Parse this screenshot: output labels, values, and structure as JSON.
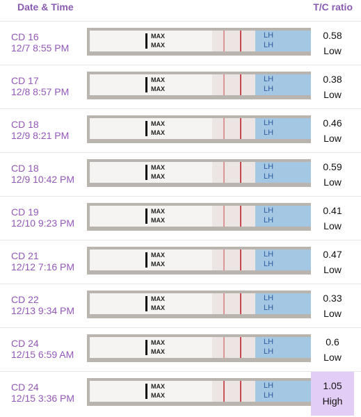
{
  "header": {
    "left": "Date & Time",
    "right": "T/C ratio"
  },
  "strip_text": {
    "max": "MAX",
    "lh": "LH"
  },
  "rows": [
    {
      "day": "CD 16",
      "datetime": "12/7 8:55 PM",
      "ratio": "0.58",
      "level": "Low"
    },
    {
      "day": "CD 17",
      "datetime": "12/8 8:57 PM",
      "ratio": "0.38",
      "level": "Low"
    },
    {
      "day": "CD 18",
      "datetime": "12/9 8:21 PM",
      "ratio": "0.46",
      "level": "Low"
    },
    {
      "day": "CD 18",
      "datetime": "12/9 10:42 PM",
      "ratio": "0.59",
      "level": "Low"
    },
    {
      "day": "CD 19",
      "datetime": "12/10 9:23 PM",
      "ratio": "0.41",
      "level": "Low"
    },
    {
      "day": "CD 21",
      "datetime": "12/12 7:16 PM",
      "ratio": "0.47",
      "level": "Low"
    },
    {
      "day": "CD 22",
      "datetime": "12/13 9:34 PM",
      "ratio": "0.33",
      "level": "Low"
    },
    {
      "day": "CD 24",
      "datetime": "12/15 6:59 AM",
      "ratio": "0.6",
      "level": "Low"
    },
    {
      "day": "CD 24",
      "datetime": "12/15 3:36 PM",
      "ratio": "1.05",
      "level": "High",
      "highlight": true
    }
  ]
}
